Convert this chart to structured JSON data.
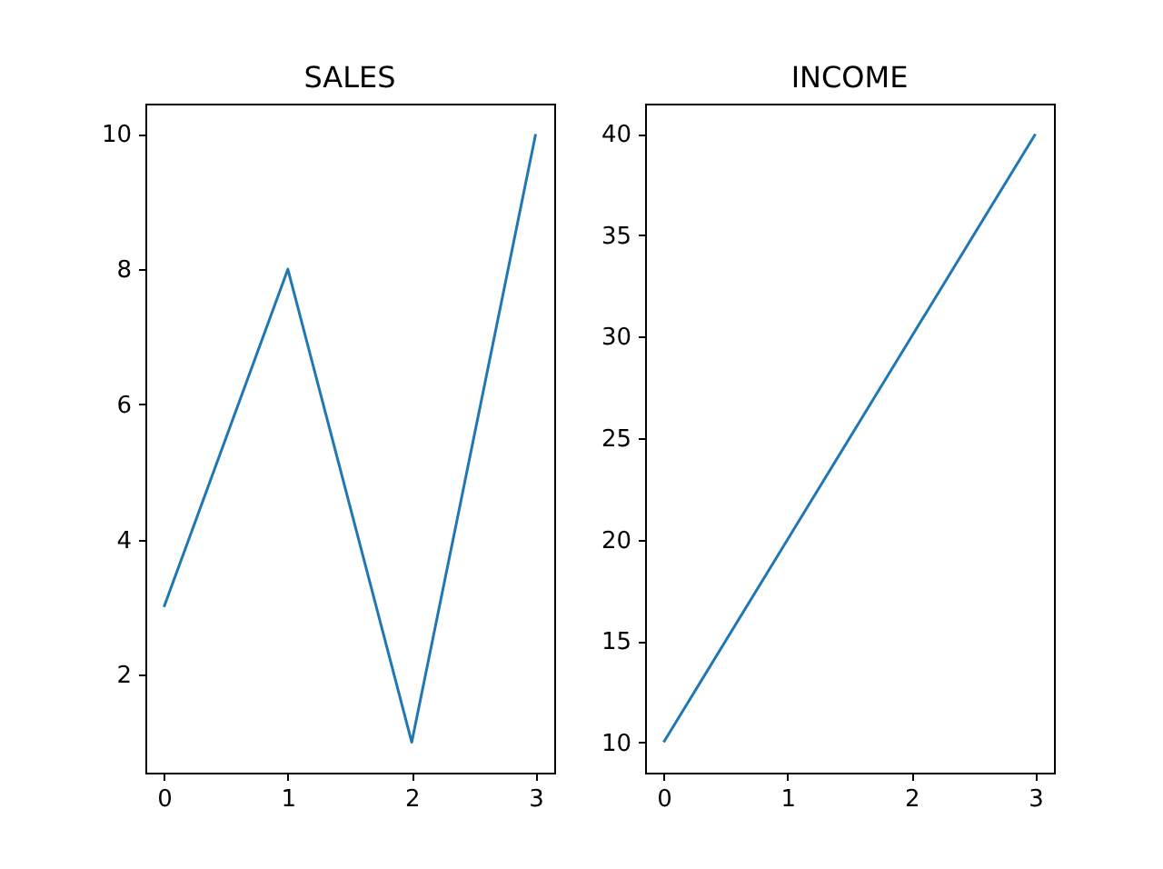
{
  "chart_data": [
    {
      "type": "line",
      "title": "SALES",
      "x": [
        0,
        1,
        2,
        3
      ],
      "series": [
        {
          "color": "#1f77b4",
          "values": [
            3,
            8,
            1,
            10
          ]
        }
      ],
      "xlim": [
        -0.15,
        3.15
      ],
      "xticks": [
        0,
        1,
        2,
        3
      ],
      "ylim": [
        0.55,
        10.45
      ],
      "yticks": [
        2,
        4,
        6,
        8,
        10
      ],
      "grid": false
    },
    {
      "type": "line",
      "title": "INCOME",
      "x": [
        0,
        1,
        2,
        3
      ],
      "series": [
        {
          "color": "#1f77b4",
          "values": [
            10,
            20,
            30,
            40
          ]
        }
      ],
      "xlim": [
        -0.15,
        3.15
      ],
      "xticks": [
        0,
        1,
        2,
        3
      ],
      "ylim": [
        8.5,
        41.5
      ],
      "yticks": [
        10,
        15,
        20,
        25,
        30,
        35,
        40
      ],
      "grid": false
    }
  ]
}
